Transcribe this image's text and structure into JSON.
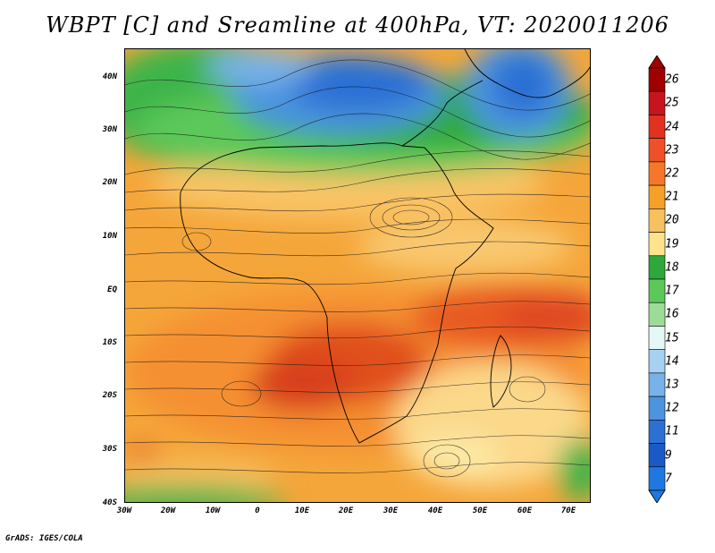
{
  "title": "WBPT [C] and Sreamline at 400hPa, VT: 2020011206",
  "credit": "GrADS: IGES/COLA",
  "lat_labels": [
    "40N",
    "30N",
    "20N",
    "10N",
    "EQ",
    "10S",
    "20S",
    "30S",
    "40S"
  ],
  "lon_labels": [
    "30W",
    "20W",
    "10W",
    "0",
    "10E",
    "20E",
    "30E",
    "40E",
    "50E",
    "60E",
    "70E"
  ],
  "colorbar": {
    "labels": [
      "26",
      "25",
      "24",
      "23",
      "22",
      "21",
      "20",
      "19",
      "18",
      "17",
      "16",
      "15",
      "14",
      "13",
      "12",
      "11",
      "9",
      "7"
    ],
    "colors": [
      "#a00000",
      "#c8141e",
      "#e0321e",
      "#f05028",
      "#f57828",
      "#f5a028",
      "#f7c060",
      "#fde48c",
      "#2ea83a",
      "#5cc85a",
      "#9cdc96",
      "#e6f8f6",
      "#a8d0f0",
      "#78b2e8",
      "#4c94e0",
      "#2c70d4",
      "#1a5ac8",
      "#1e78e0"
    ]
  }
}
